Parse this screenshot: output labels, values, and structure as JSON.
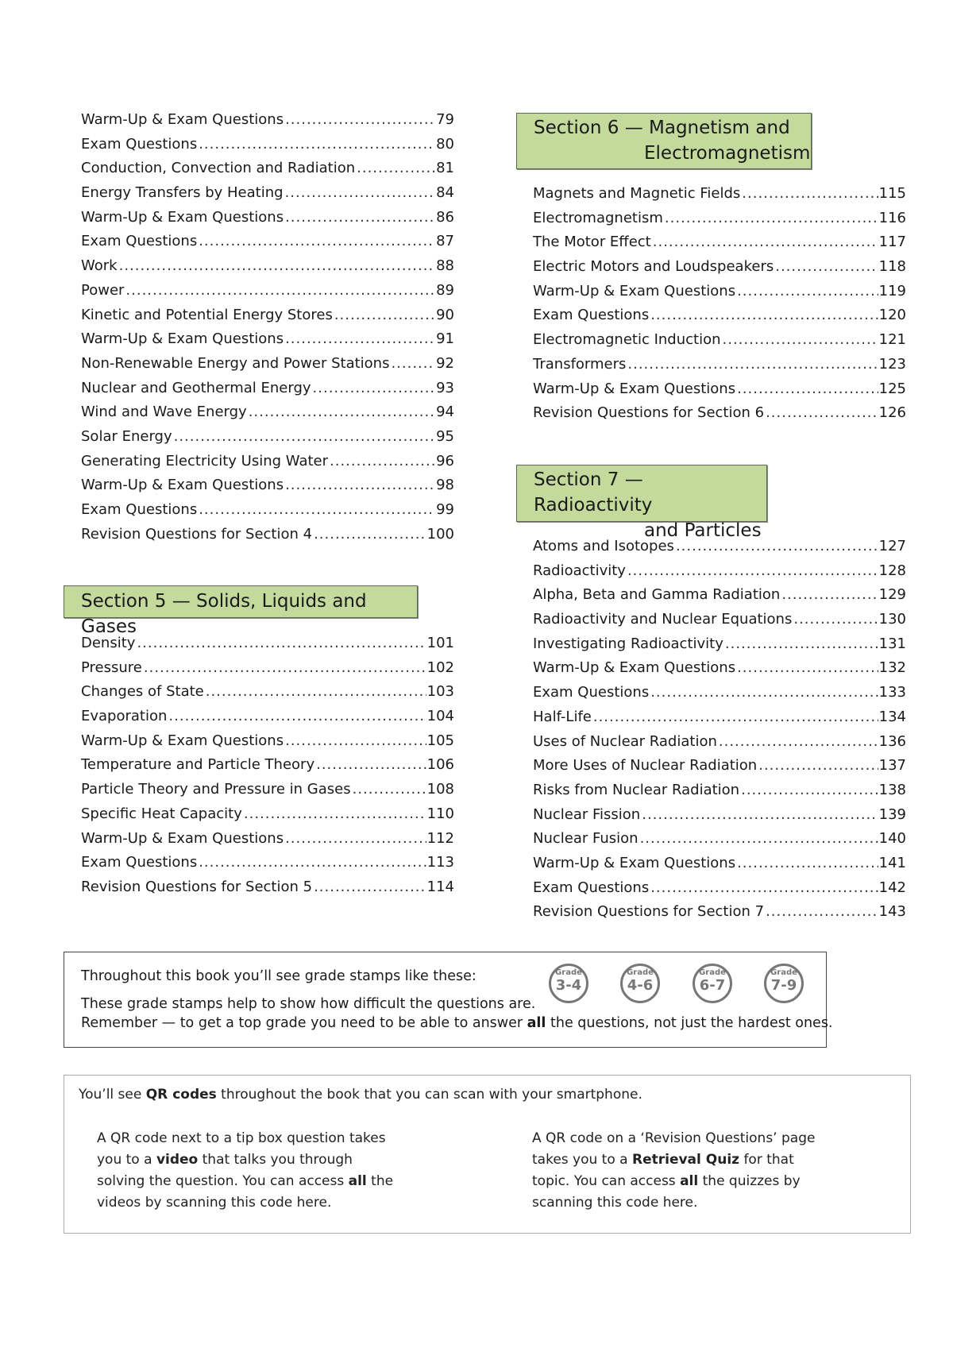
{
  "left_column": {
    "top_entries": [
      {
        "title": "Warm-Up & Exam Questions",
        "page": "79"
      },
      {
        "title": "Exam Questions",
        "page": "80"
      },
      {
        "title": "Conduction, Convection and Radiation",
        "page": "81"
      },
      {
        "title": "Energy Transfers by Heating",
        "page": "84"
      },
      {
        "title": "Warm-Up & Exam Questions",
        "page": "86"
      },
      {
        "title": "Exam Questions",
        "page": "87"
      },
      {
        "title": "Work",
        "page": "88"
      },
      {
        "title": "Power",
        "page": "89"
      },
      {
        "title": "Kinetic and Potential Energy Stores",
        "page": "90"
      },
      {
        "title": "Warm-Up & Exam Questions",
        "page": "91"
      },
      {
        "title": "Non-Renewable Energy and Power Stations",
        "page": "92"
      },
      {
        "title": "Nuclear and Geothermal Energy",
        "page": "93"
      },
      {
        "title": "Wind and Wave Energy",
        "page": "94"
      },
      {
        "title": "Solar Energy",
        "page": "95"
      },
      {
        "title": "Generating Electricity Using Water",
        "page": "96"
      },
      {
        "title": "Warm-Up & Exam Questions",
        "page": "98"
      },
      {
        "title": "Exam Questions",
        "page": "99"
      },
      {
        "title": "Revision Questions for Section 4",
        "page": "100"
      }
    ],
    "section5": {
      "heading": "Section 5 — Solids, Liquids and Gases",
      "entries": [
        {
          "title": "Density",
          "page": "101"
        },
        {
          "title": "Pressure",
          "page": "102"
        },
        {
          "title": "Changes of State",
          "page": "103"
        },
        {
          "title": "Evaporation",
          "page": "104"
        },
        {
          "title": "Warm-Up & Exam Questions",
          "page": "105"
        },
        {
          "title": "Temperature and Particle Theory",
          "page": "106"
        },
        {
          "title": "Particle Theory and Pressure in Gases",
          "page": "108"
        },
        {
          "title": "Specific Heat Capacity",
          "page": "110"
        },
        {
          "title": "Warm-Up & Exam Questions",
          "page": "112"
        },
        {
          "title": "Exam Questions",
          "page": "113"
        },
        {
          "title": "Revision Questions for Section 5",
          "page": "114"
        }
      ]
    }
  },
  "right_column": {
    "section6": {
      "heading_line1": "Section 6 — Magnetism and",
      "heading_line2": "Electromagnetism",
      "entries": [
        {
          "title": "Magnets and Magnetic Fields",
          "page": "115"
        },
        {
          "title": "Electromagnetism",
          "page": "116"
        },
        {
          "title": "The Motor Effect",
          "page": "117"
        },
        {
          "title": "Electric Motors and Loudspeakers",
          "page": "118"
        },
        {
          "title": "Warm-Up & Exam Questions",
          "page": "119"
        },
        {
          "title": "Exam Questions",
          "page": "120"
        },
        {
          "title": "Electromagnetic Induction",
          "page": "121"
        },
        {
          "title": "Transformers",
          "page": "123"
        },
        {
          "title": "Warm-Up & Exam Questions",
          "page": "125"
        },
        {
          "title": "Revision Questions for Section 6",
          "page": "126"
        }
      ]
    },
    "section7": {
      "heading_line1": "Section 7 — Radioactivity",
      "heading_line2": "and Particles",
      "entries": [
        {
          "title": "Atoms and Isotopes",
          "page": "127"
        },
        {
          "title": "Radioactivity",
          "page": "128"
        },
        {
          "title": "Alpha, Beta and Gamma Radiation",
          "page": "129"
        },
        {
          "title": "Radioactivity and Nuclear Equations",
          "page": "130"
        },
        {
          "title": "Investigating Radioactivity",
          "page": "131"
        },
        {
          "title": "Warm-Up & Exam Questions",
          "page": "132"
        },
        {
          "title": "Exam Questions",
          "page": "133"
        },
        {
          "title": "Half-Life",
          "page": "134"
        },
        {
          "title": "Uses of Nuclear Radiation",
          "page": "136"
        },
        {
          "title": "More Uses of Nuclear Radiation",
          "page": "137"
        },
        {
          "title": "Risks from Nuclear Radiation",
          "page": "138"
        },
        {
          "title": "Nuclear Fission",
          "page": "139"
        },
        {
          "title": "Nuclear Fusion",
          "page": "140"
        },
        {
          "title": "Warm-Up & Exam Questions",
          "page": "141"
        },
        {
          "title": "Exam Questions",
          "page": "142"
        },
        {
          "title": "Revision Questions for Section 7",
          "page": "143"
        }
      ]
    }
  },
  "grade_box": {
    "line1": "Throughout this book you’ll see grade stamps like these:",
    "line2": "These grade stamps help to show how difficult the questions are.",
    "line3_before": "Remember — to get a top grade you need to be able to answer ",
    "line3_bold": "all",
    "line3_after": " the questions, not just the hardest ones.",
    "stamp_label": "Grade",
    "stamps": [
      "3-4",
      "4-6",
      "6-7",
      "7-9"
    ],
    "stamp_color": "#777777"
  },
  "qr_box": {
    "intro_before": "You’ll see ",
    "intro_bold": "QR codes",
    "intro_after": " throughout the book that you can scan with your smartphone.",
    "left": {
      "p1": "A QR code next to a tip box question takes you to a ",
      "b1": "video",
      "p2": " that talks you through solving the question.  You can access ",
      "b2": "all",
      "p3": " the videos by scanning this code here."
    },
    "right": {
      "p1": "A QR code on a ‘Revision Questions’ page takes you to a ",
      "b1": "Retrieval Quiz",
      "p2": " for that topic.  You can access ",
      "b2": "all",
      "p3": " the quizzes by scanning this code here."
    }
  },
  "colors": {
    "section_header_bg": "#c3da9c"
  }
}
